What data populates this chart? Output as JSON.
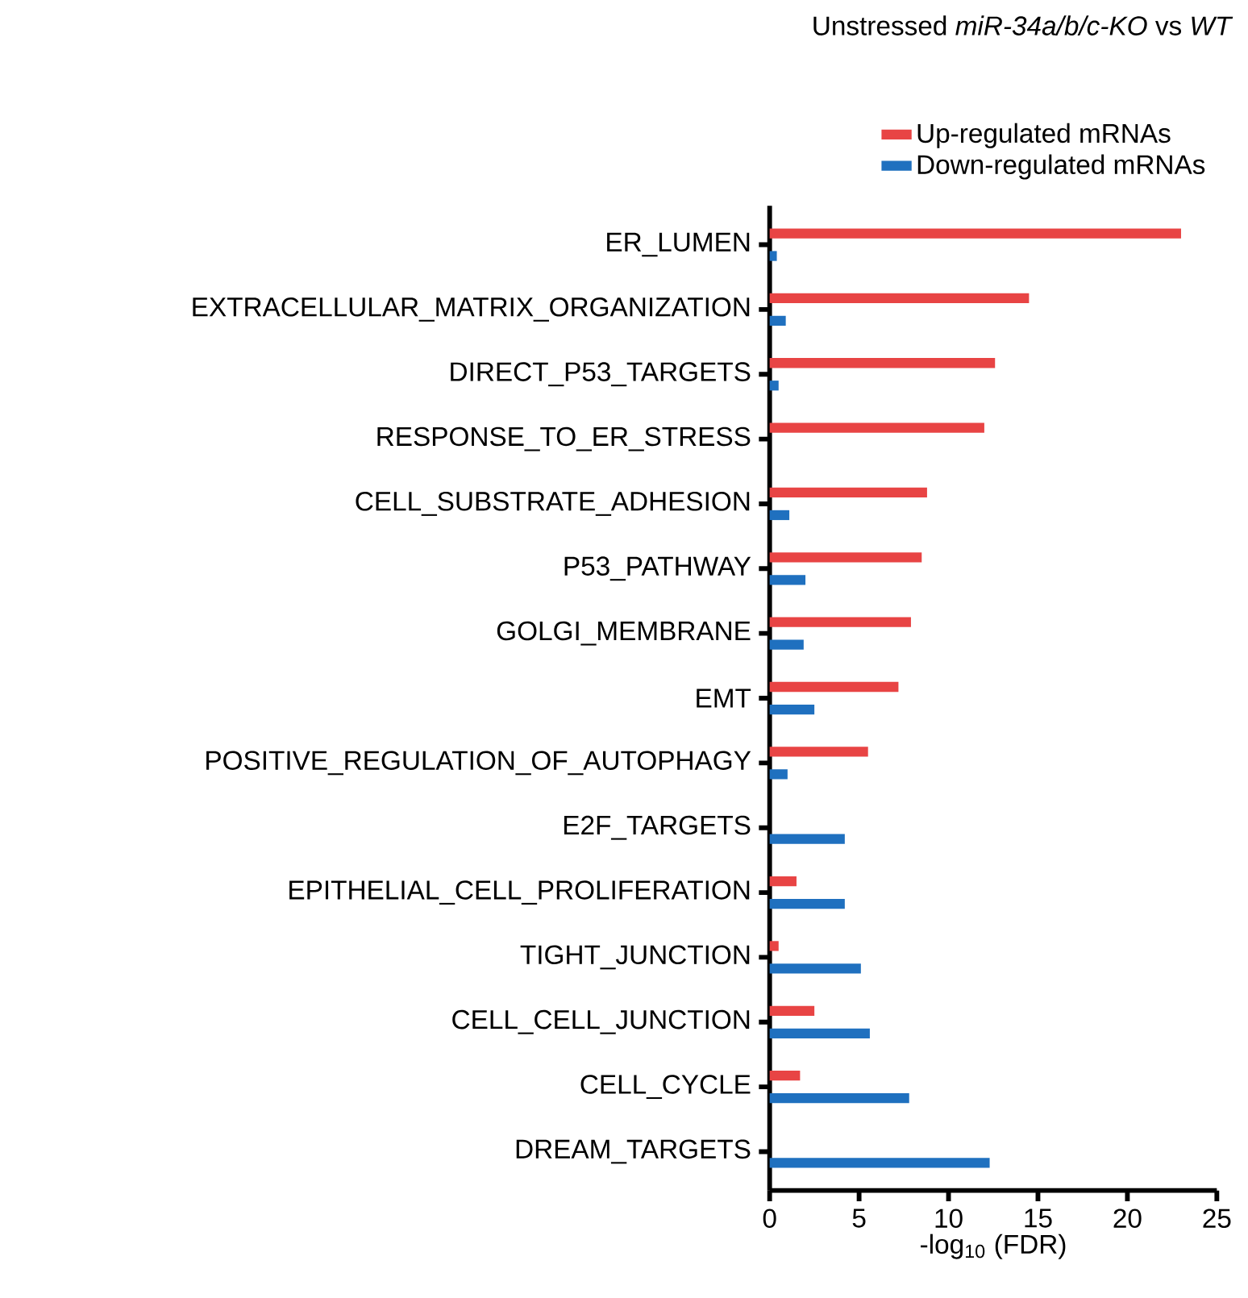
{
  "chart_data": {
    "type": "bar",
    "orientation": "horizontal",
    "title": "Unstressed *miR-34a/b/c-KO*  vs *WT*",
    "xlabel": "-log$_{10}$ (FDR)",
    "categories": [
      "ER_LUMEN",
      "EXTRACELLULAR_MATRIX_ORGANIZATION",
      "DIRECT_P53_TARGETS",
      "RESPONSE_TO_ER_STRESS",
      "CELL_SUBSTRATE_ADHESION",
      "P53_PATHWAY",
      "GOLGI_MEMBRANE",
      "EMT",
      "POSITIVE_REGULATION_OF_AUTOPHAGY",
      "E2F_TARGETS",
      "EPITHELIAL_CELL_PROLIFERATION",
      "TIGHT_JUNCTION",
      "CELL_CELL_JUNCTION",
      "CELL_CYCLE",
      "DREAM_TARGETS"
    ],
    "series": [
      {
        "name": "Up-regulated mRNAs",
        "color": "#e84444",
        "values": [
          23.0,
          14.5,
          12.6,
          12.0,
          8.8,
          8.5,
          7.9,
          7.2,
          5.5,
          null,
          1.5,
          0.5,
          2.5,
          1.7,
          null
        ]
      },
      {
        "name": "Down-regulated mRNAs",
        "color": "#1f70bf",
        "values": [
          0.4,
          0.9,
          0.5,
          null,
          1.1,
          2.0,
          1.9,
          2.5,
          1.0,
          4.2,
          4.2,
          5.1,
          5.6,
          7.8,
          12.3
        ]
      }
    ],
    "xlim": [
      0,
      25
    ],
    "xticks": [
      0,
      5,
      10,
      15,
      20,
      25
    ],
    "legend": "top right",
    "grid": false
  }
}
